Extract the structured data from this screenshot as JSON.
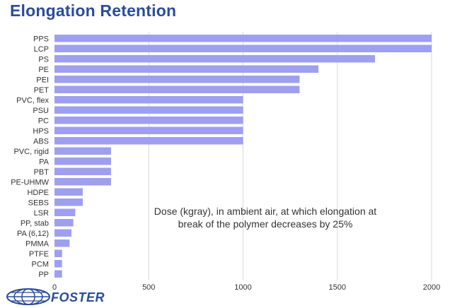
{
  "title": "Elongation Retention",
  "annotation": "Dose (kgray), in ambient air, at which elongation at break of the polymer decreases by 25%",
  "logo_text": "FOSTER",
  "colors": {
    "bar": "#9f9ff0",
    "title": "#2b4c9a",
    "grid": "#d9d9d9"
  },
  "chart_data": {
    "type": "bar",
    "orientation": "horizontal",
    "categories": [
      "PPS",
      "LCP",
      "PS",
      "PE",
      "PEI",
      "PET",
      "PVC, flex",
      "PSU",
      "PC",
      "HPS",
      "ABS",
      "PVC, rigid",
      "PA",
      "PBT",
      "PE-UHMW",
      "HDPE",
      "SEBS",
      "LSR",
      "PP, stab",
      "PA (6,12)",
      "PMMA",
      "PTFE",
      "PCM",
      "PP"
    ],
    "values": [
      2000,
      2000,
      1700,
      1400,
      1300,
      1300,
      1000,
      1000,
      1000,
      1000,
      1000,
      300,
      300,
      300,
      300,
      150,
      150,
      110,
      100,
      90,
      80,
      40,
      40,
      40
    ],
    "xticks": [
      0,
      500,
      1000,
      1500,
      2000
    ],
    "xlim": [
      0,
      2000
    ],
    "grid": true
  }
}
